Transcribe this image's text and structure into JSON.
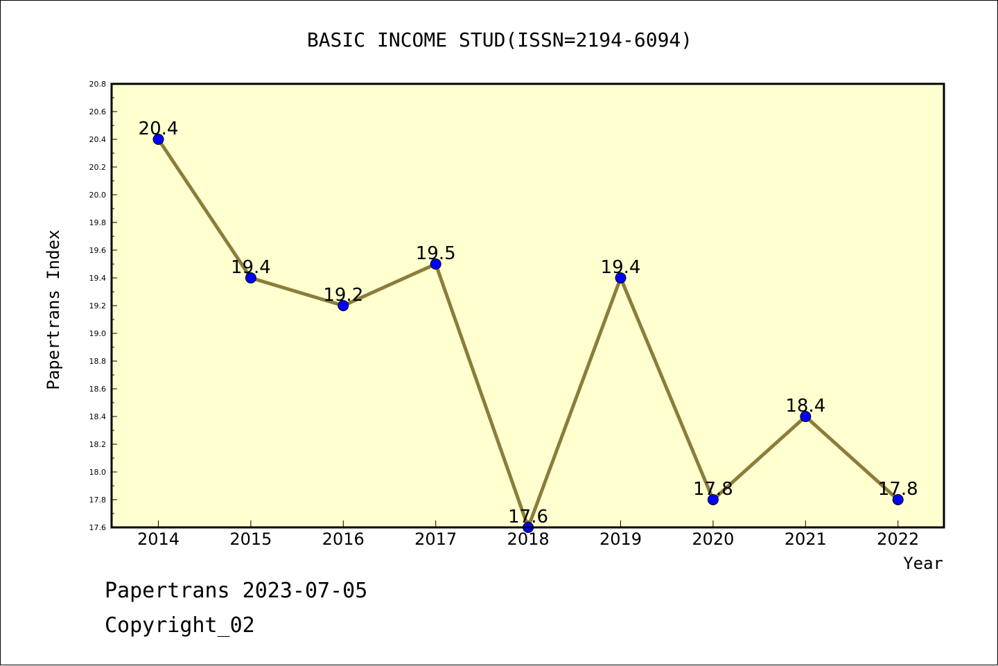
{
  "chart_data": {
    "type": "line",
    "title": "BASIC INCOME STUD(ISSN=2194-6094)",
    "xlabel": "Year",
    "ylabel": "Papertrans Index",
    "categories": [
      "2014",
      "2015",
      "2016",
      "2017",
      "2018",
      "2019",
      "2020",
      "2021",
      "2022"
    ],
    "series": [
      {
        "values": [
          20.4,
          19.4,
          19.2,
          19.5,
          17.6,
          19.4,
          17.8,
          18.4,
          17.8
        ],
        "labels": [
          "20.4",
          "19.4",
          "19.2",
          "19.5",
          "17.6",
          "19.4",
          "17.8",
          "18.4",
          "17.8"
        ]
      }
    ],
    "ylim": [
      17.6,
      20.8
    ],
    "yticks": [
      "17.6",
      "17.8",
      "18.0",
      "18.2",
      "18.4",
      "18.6",
      "18.8",
      "19.0",
      "19.2",
      "19.4",
      "19.6",
      "19.8",
      "20.0",
      "20.2",
      "20.4",
      "20.6",
      "20.8"
    ],
    "grid": false,
    "colors": {
      "plot_background": "#ffffd0",
      "line": "#8b7d3a",
      "marker": "#0000ff"
    }
  },
  "footer": {
    "line1": "Papertrans 2023-07-05",
    "line2": "Copyright_02"
  }
}
